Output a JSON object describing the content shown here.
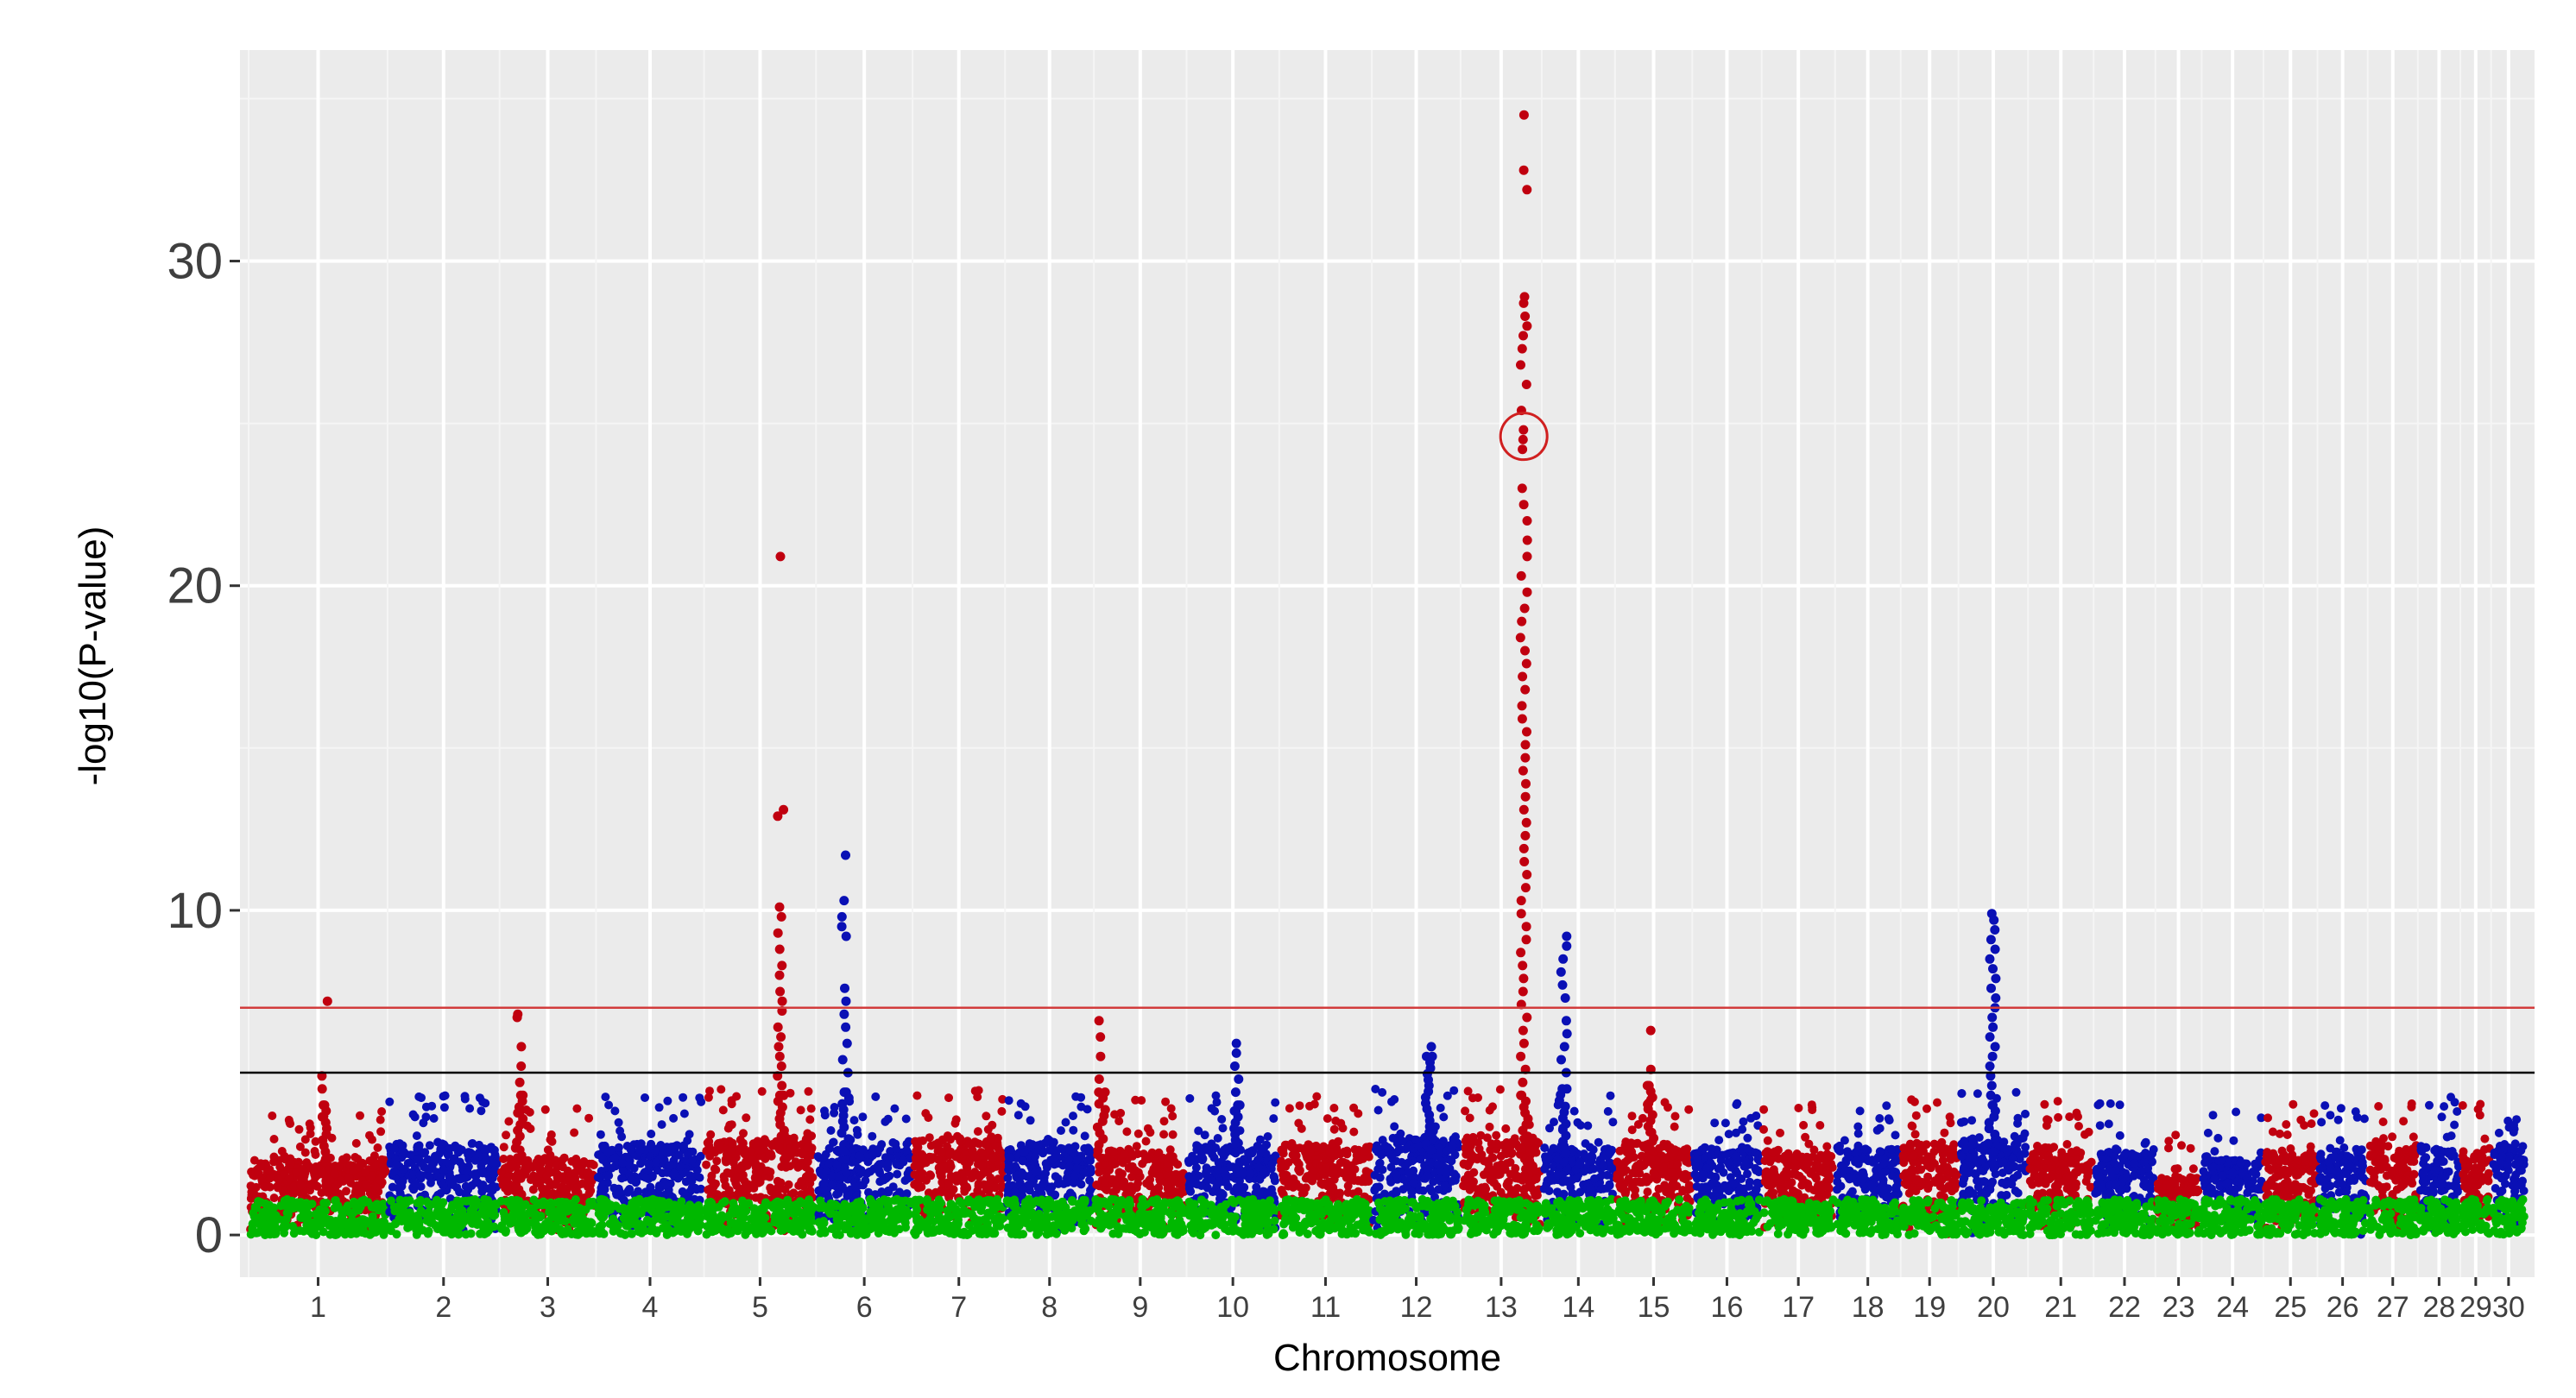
{
  "chart_data": {
    "type": "scatter",
    "title": "",
    "xlabel": "Chromosome",
    "ylabel": "-log10(P-value)",
    "ylim": [
      -1.3,
      36.5
    ],
    "y_ticks": [
      0,
      10,
      20,
      30
    ],
    "grid": true,
    "background": "#ebebeb",
    "categories": [
      "1",
      "2",
      "3",
      "4",
      "5",
      "6",
      "7",
      "8",
      "9",
      "10",
      "11",
      "12",
      "13",
      "14",
      "15",
      "16",
      "17",
      "18",
      "19",
      "20",
      "21",
      "22",
      "23",
      "24",
      "25",
      "26",
      "27",
      "28",
      "29",
      "30"
    ],
    "chromosome_relative_widths": [
      3.6,
      2.9,
      2.5,
      2.8,
      2.9,
      2.5,
      2.4,
      2.3,
      2.4,
      2.4,
      2.4,
      2.3,
      2.1,
      1.9,
      2.0,
      1.8,
      1.9,
      1.7,
      1.5,
      1.8,
      1.7,
      1.6,
      1.2,
      1.6,
      1.4,
      1.3,
      1.3,
      1.1,
      0.8,
      0.9
    ],
    "series_colors": [
      "#c0000f",
      "#0a10b5",
      "#00b800"
    ],
    "thresholds": [
      {
        "value": 7.0,
        "color": "#d23c3c"
      },
      {
        "value": 5.0,
        "color": "#000000"
      }
    ],
    "peaks": [
      {
        "chromosome": "1",
        "values": [
          7.2,
          4.9,
          4.5,
          4.0
        ]
      },
      {
        "chromosome": "3",
        "values": [
          6.8,
          6.7,
          5.8,
          5.2,
          4.7,
          4.3
        ]
      },
      {
        "chromosome": "5",
        "values": [
          20.9,
          13.1,
          12.9,
          10.1,
          9.8,
          9.3,
          8.8,
          8.3,
          8.0,
          7.5,
          7.2,
          6.9,
          6.4,
          6.1,
          5.8,
          5.5,
          5.2,
          4.9,
          4.6,
          4.3
        ]
      },
      {
        "chromosome": "6",
        "values": [
          11.7,
          10.3,
          9.8,
          9.5,
          9.2,
          7.6,
          7.2,
          6.8,
          6.4,
          5.9,
          5.4,
          5.0,
          4.4
        ]
      },
      {
        "chromosome": "9",
        "values": [
          6.6,
          6.1,
          5.5,
          4.8,
          4.4
        ]
      },
      {
        "chromosome": "10",
        "values": [
          5.9,
          5.6,
          5.2,
          4.8,
          4.4,
          4.0
        ]
      },
      {
        "chromosome": "12",
        "values": [
          5.8,
          5.5
        ]
      },
      {
        "chromosome": "13",
        "values": [
          34.5,
          32.8,
          32.2,
          28.9,
          28.7,
          28.3,
          28.0,
          27.7,
          27.3,
          26.8,
          26.2,
          25.4,
          24.8,
          24.5,
          24.2,
          23.0,
          22.5,
          22.0,
          21.4,
          20.9,
          20.3,
          19.8,
          19.3,
          18.9,
          18.4,
          18.0,
          17.6,
          17.2,
          16.8,
          16.3,
          15.9,
          15.5,
          15.1,
          14.7,
          14.3,
          13.9,
          13.5,
          13.1,
          12.7,
          12.3,
          11.9,
          11.5,
          11.1,
          10.7,
          10.3,
          9.9,
          9.5,
          9.1,
          8.7,
          8.3,
          7.9,
          7.5,
          7.1,
          6.7,
          6.3,
          5.9,
          5.5,
          5.1,
          4.7,
          4.3
        ]
      },
      {
        "chromosome": "14",
        "values": [
          9.2,
          8.9,
          8.5,
          8.1,
          7.7,
          7.3,
          6.6,
          6.2,
          5.8,
          5.4,
          5.0,
          4.5
        ]
      },
      {
        "chromosome": "15",
        "values": [
          6.3,
          5.1,
          4.6
        ]
      },
      {
        "chromosome": "20",
        "values": [
          9.9,
          9.7,
          9.4,
          9.1,
          8.8,
          8.5,
          8.2,
          7.9,
          7.6,
          7.3,
          7.0,
          6.7,
          6.4,
          6.1,
          5.8,
          5.5,
          5.2,
          4.9,
          4.6,
          4.3,
          4.0
        ]
      }
    ],
    "highlighted_point": {
      "chromosome": "13",
      "value": 24.6,
      "marker": "open red circle"
    }
  }
}
